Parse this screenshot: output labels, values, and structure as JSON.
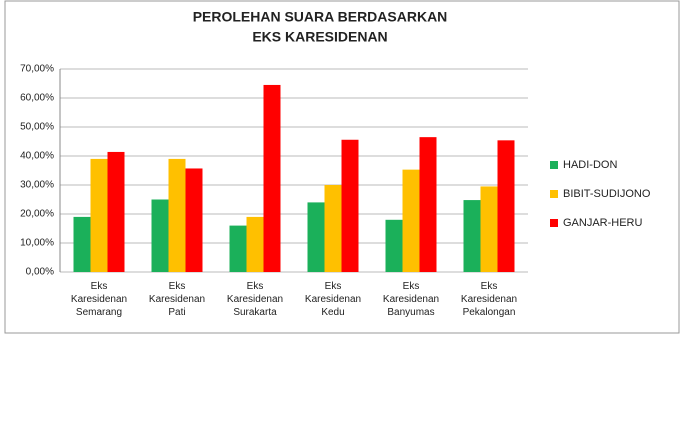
{
  "chart_data": {
    "type": "bar",
    "title": [
      "PEROLEHAN SUARA BERDASARKAN",
      "EKS KARESIDENAN"
    ],
    "categories": [
      "Eks Karesidenan Semarang",
      "Eks Karesidenan Pati",
      "Eks Karesidenan Surakarta",
      "Eks Karesidenan Kedu",
      "Eks Karesidenan Banyumas",
      "Eks Karesidenan Pekalongan"
    ],
    "series": [
      {
        "name": "HADI-DON",
        "color": "#1bb05a",
        "values": [
          19,
          25,
          16,
          24,
          18,
          24.8
        ]
      },
      {
        "name": "BIBIT-SUDIJONO",
        "color": "#ffc000",
        "values": [
          39,
          39,
          19,
          30,
          35.3,
          29.5
        ]
      },
      {
        "name": "GANJAR-HERU",
        "color": "#ff0000",
        "values": [
          41.4,
          35.7,
          64.5,
          45.6,
          46.5,
          45.4
        ]
      }
    ],
    "ylim": [
      0,
      70
    ],
    "yticks": [
      {
        "value": 0,
        "label": "0,00%"
      },
      {
        "value": 10,
        "label": "10,00%"
      },
      {
        "value": 20,
        "label": "20,00%"
      },
      {
        "value": 30,
        "label": "30,00%"
      },
      {
        "value": 40,
        "label": "40,00%"
      },
      {
        "value": 50,
        "label": "50,00%"
      },
      {
        "value": 60,
        "label": "60,00%"
      },
      {
        "value": 70,
        "label": "70,00%"
      }
    ],
    "grid": true,
    "legend": "right"
  }
}
